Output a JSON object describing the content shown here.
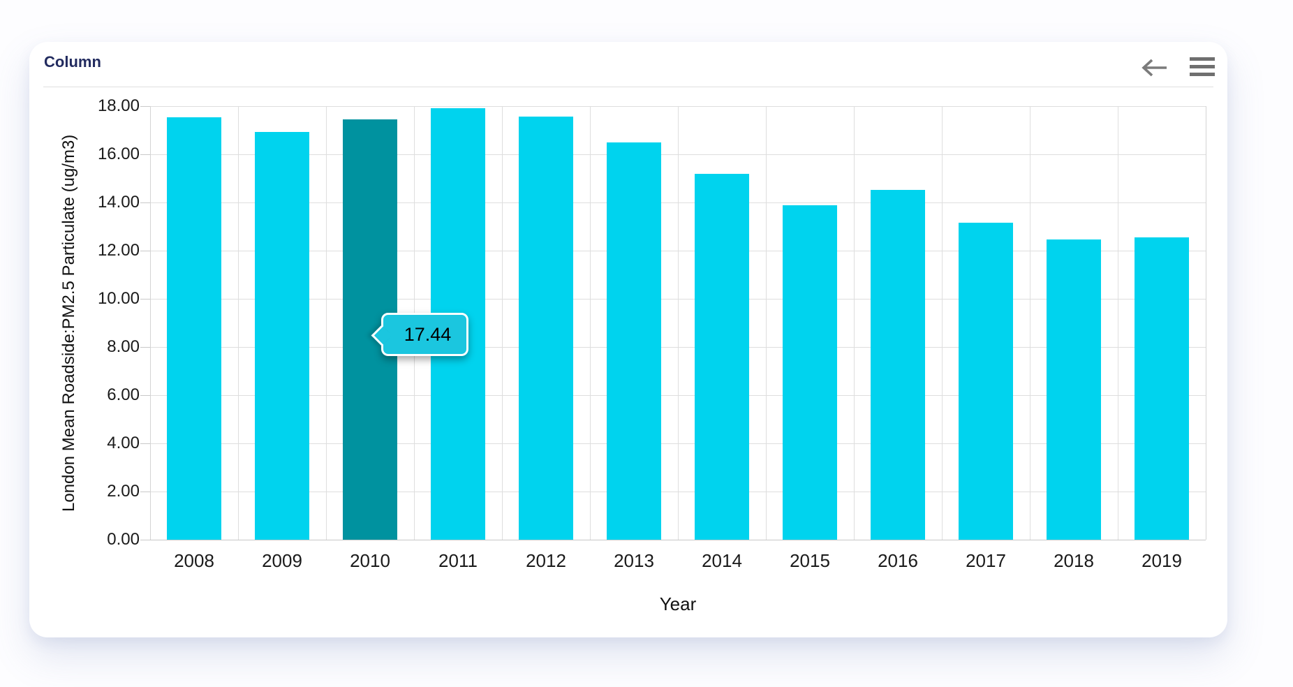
{
  "card": {
    "title": "Column",
    "icons": [
      {
        "name": "back-arrow-icon"
      },
      {
        "name": "menu-icon"
      }
    ]
  },
  "chart_data": {
    "type": "bar",
    "title": "Column",
    "xlabel": "Year",
    "ylabel": "London Mean Roadside:PM2.5 Particulate (ug/m3)",
    "categories": [
      "2008",
      "2009",
      "2010",
      "2011",
      "2012",
      "2013",
      "2014",
      "2015",
      "2016",
      "2017",
      "2018",
      "2019"
    ],
    "values": [
      17.53,
      16.94,
      17.44,
      17.92,
      17.56,
      16.5,
      15.19,
      13.88,
      14.51,
      13.15,
      12.46,
      12.54
    ],
    "ylim": [
      0,
      18
    ],
    "ytick_step": 2,
    "ytick_labels": [
      "18.00",
      "16.00",
      "14.00",
      "12.00",
      "10.00",
      "8.00",
      "6.00",
      "4.00",
      "2.00",
      "0.00"
    ],
    "grid": true,
    "legend": "none",
    "selected_index": 2,
    "tooltip": {
      "text": "17.44",
      "category": "2010"
    },
    "colors": {
      "bar": "#00d3ee",
      "bar_selected": "#00929f",
      "tooltip_bg": "#1bc6df",
      "title_text": "#222b5f"
    }
  }
}
